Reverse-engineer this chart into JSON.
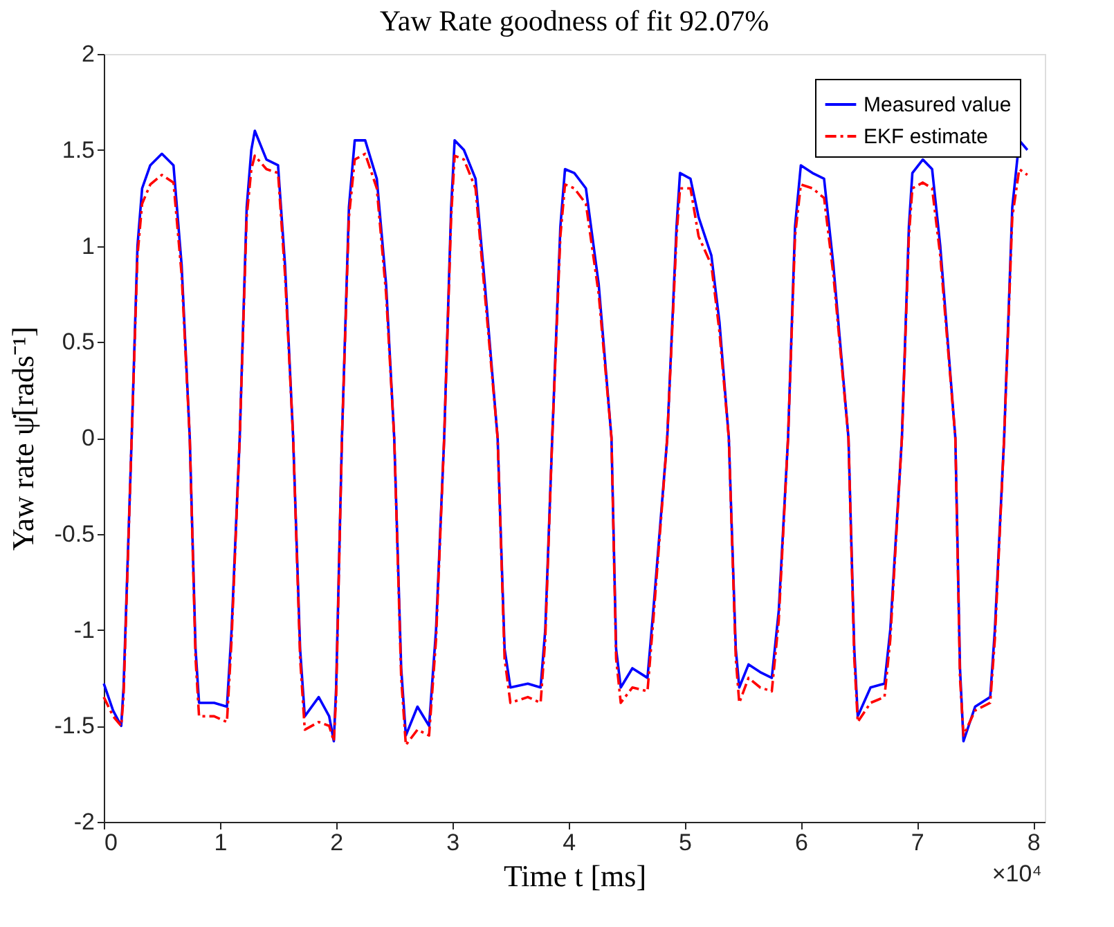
{
  "chart_data": {
    "type": "line",
    "title": "Yaw Rate goodness of fit 92.07%",
    "xlabel": "Time t [ms]",
    "ylabel": "Yaw rate ψ̇[rads⁻¹]",
    "annotations": [
      "×10⁴"
    ],
    "x": [
      0,
      0.08,
      0.15,
      0.17,
      0.24,
      0.29,
      0.33,
      0.4,
      0.5,
      0.6,
      0.67,
      0.74,
      0.79,
      0.82,
      0.95,
      1.06,
      1.1,
      1.17,
      1.23,
      1.27,
      1.3,
      1.4,
      1.5,
      1.56,
      1.63,
      1.69,
      1.73,
      1.85,
      1.94,
      1.98,
      2.0,
      2.05,
      2.11,
      2.16,
      2.25,
      2.35,
      2.43,
      2.5,
      2.56,
      2.6,
      2.7,
      2.8,
      2.86,
      2.93,
      2.99,
      3.02,
      3.1,
      3.2,
      3.28,
      3.39,
      3.45,
      3.5,
      3.65,
      3.76,
      3.8,
      3.86,
      3.93,
      3.97,
      4.05,
      4.15,
      4.26,
      4.37,
      4.41,
      4.45,
      4.55,
      4.68,
      4.73,
      4.85,
      4.93,
      4.96,
      5.05,
      5.12,
      5.23,
      5.3,
      5.38,
      5.44,
      5.47,
      5.55,
      5.65,
      5.75,
      5.81,
      5.89,
      5.95,
      6.0,
      6.1,
      6.2,
      6.28,
      6.41,
      6.46,
      6.49,
      6.6,
      6.72,
      6.77,
      6.87,
      6.93,
      6.96,
      7.05,
      7.13,
      7.2,
      7.33,
      7.37,
      7.4,
      7.5,
      7.63,
      7.67,
      7.75,
      7.82,
      7.88,
      7.95
    ],
    "series": [
      {
        "name": "Measured value",
        "color": "#0000ff",
        "line_style": "solid",
        "values": [
          -1.28,
          -1.42,
          -1.5,
          -1.3,
          0,
          1.0,
          1.3,
          1.42,
          1.48,
          1.42,
          0.9,
          0,
          -1.1,
          -1.38,
          -1.38,
          -1.4,
          -1.0,
          0,
          1.2,
          1.5,
          1.6,
          1.45,
          1.42,
          0.9,
          0,
          -1.1,
          -1.45,
          -1.35,
          -1.45,
          -1.58,
          -1.3,
          0,
          1.2,
          1.55,
          1.55,
          1.35,
          0.8,
          0,
          -1.2,
          -1.55,
          -1.4,
          -1.5,
          -1.0,
          0,
          1.2,
          1.55,
          1.5,
          1.35,
          0.8,
          0,
          -1.1,
          -1.3,
          -1.28,
          -1.3,
          -1.0,
          0,
          1.1,
          1.4,
          1.38,
          1.3,
          0.8,
          0,
          -1.1,
          -1.3,
          -1.2,
          -1.25,
          -0.9,
          0,
          1.1,
          1.38,
          1.35,
          1.15,
          0.95,
          0.6,
          0,
          -1.1,
          -1.3,
          -1.18,
          -1.22,
          -1.25,
          -0.9,
          0,
          1.1,
          1.42,
          1.38,
          1.35,
          0.9,
          0,
          -1.1,
          -1.45,
          -1.3,
          -1.28,
          -1.0,
          0,
          1.1,
          1.38,
          1.45,
          1.4,
          1.0,
          0,
          -1.2,
          -1.58,
          -1.4,
          -1.35,
          -1.0,
          0,
          1.2,
          1.55,
          1.5
        ]
      },
      {
        "name": "EKF estimate",
        "color": "#ff0000",
        "line_style": "dashdot",
        "values": [
          -1.35,
          -1.45,
          -1.5,
          -1.35,
          0,
          0.95,
          1.22,
          1.32,
          1.37,
          1.33,
          0.85,
          0,
          -1.15,
          -1.45,
          -1.45,
          -1.48,
          -1.05,
          0,
          1.15,
          1.4,
          1.47,
          1.4,
          1.38,
          0.85,
          0,
          -1.15,
          -1.52,
          -1.48,
          -1.5,
          -1.58,
          -1.35,
          0,
          1.15,
          1.45,
          1.48,
          1.3,
          0.75,
          0,
          -1.25,
          -1.6,
          -1.52,
          -1.55,
          -1.05,
          0,
          1.15,
          1.47,
          1.45,
          1.3,
          0.75,
          0,
          -1.15,
          -1.38,
          -1.35,
          -1.38,
          -1.05,
          0,
          1.05,
          1.32,
          1.3,
          1.22,
          0.75,
          0,
          -1.15,
          -1.38,
          -1.3,
          -1.32,
          -0.95,
          0,
          1.05,
          1.3,
          1.3,
          1.05,
          0.9,
          0.55,
          0,
          -1.15,
          -1.38,
          -1.25,
          -1.3,
          -1.32,
          -0.95,
          0,
          1.05,
          1.32,
          1.3,
          1.25,
          0.85,
          0,
          -1.15,
          -1.48,
          -1.38,
          -1.35,
          -1.05,
          0,
          1.05,
          1.3,
          1.33,
          1.3,
          0.95,
          0,
          -1.25,
          -1.55,
          -1.42,
          -1.38,
          -1.05,
          0,
          1.15,
          1.4,
          1.37
        ]
      }
    ],
    "xlim": [
      0,
      8.1
    ],
    "xticks": [
      0,
      1,
      2,
      3,
      4,
      5,
      6,
      7,
      8
    ],
    "ylim": [
      -2,
      2
    ],
    "yticks": [
      -2,
      -1.5,
      -1,
      -0.5,
      0,
      0.5,
      1,
      1.5,
      2
    ],
    "grid": false,
    "legend": "top right",
    "marker": "none"
  }
}
